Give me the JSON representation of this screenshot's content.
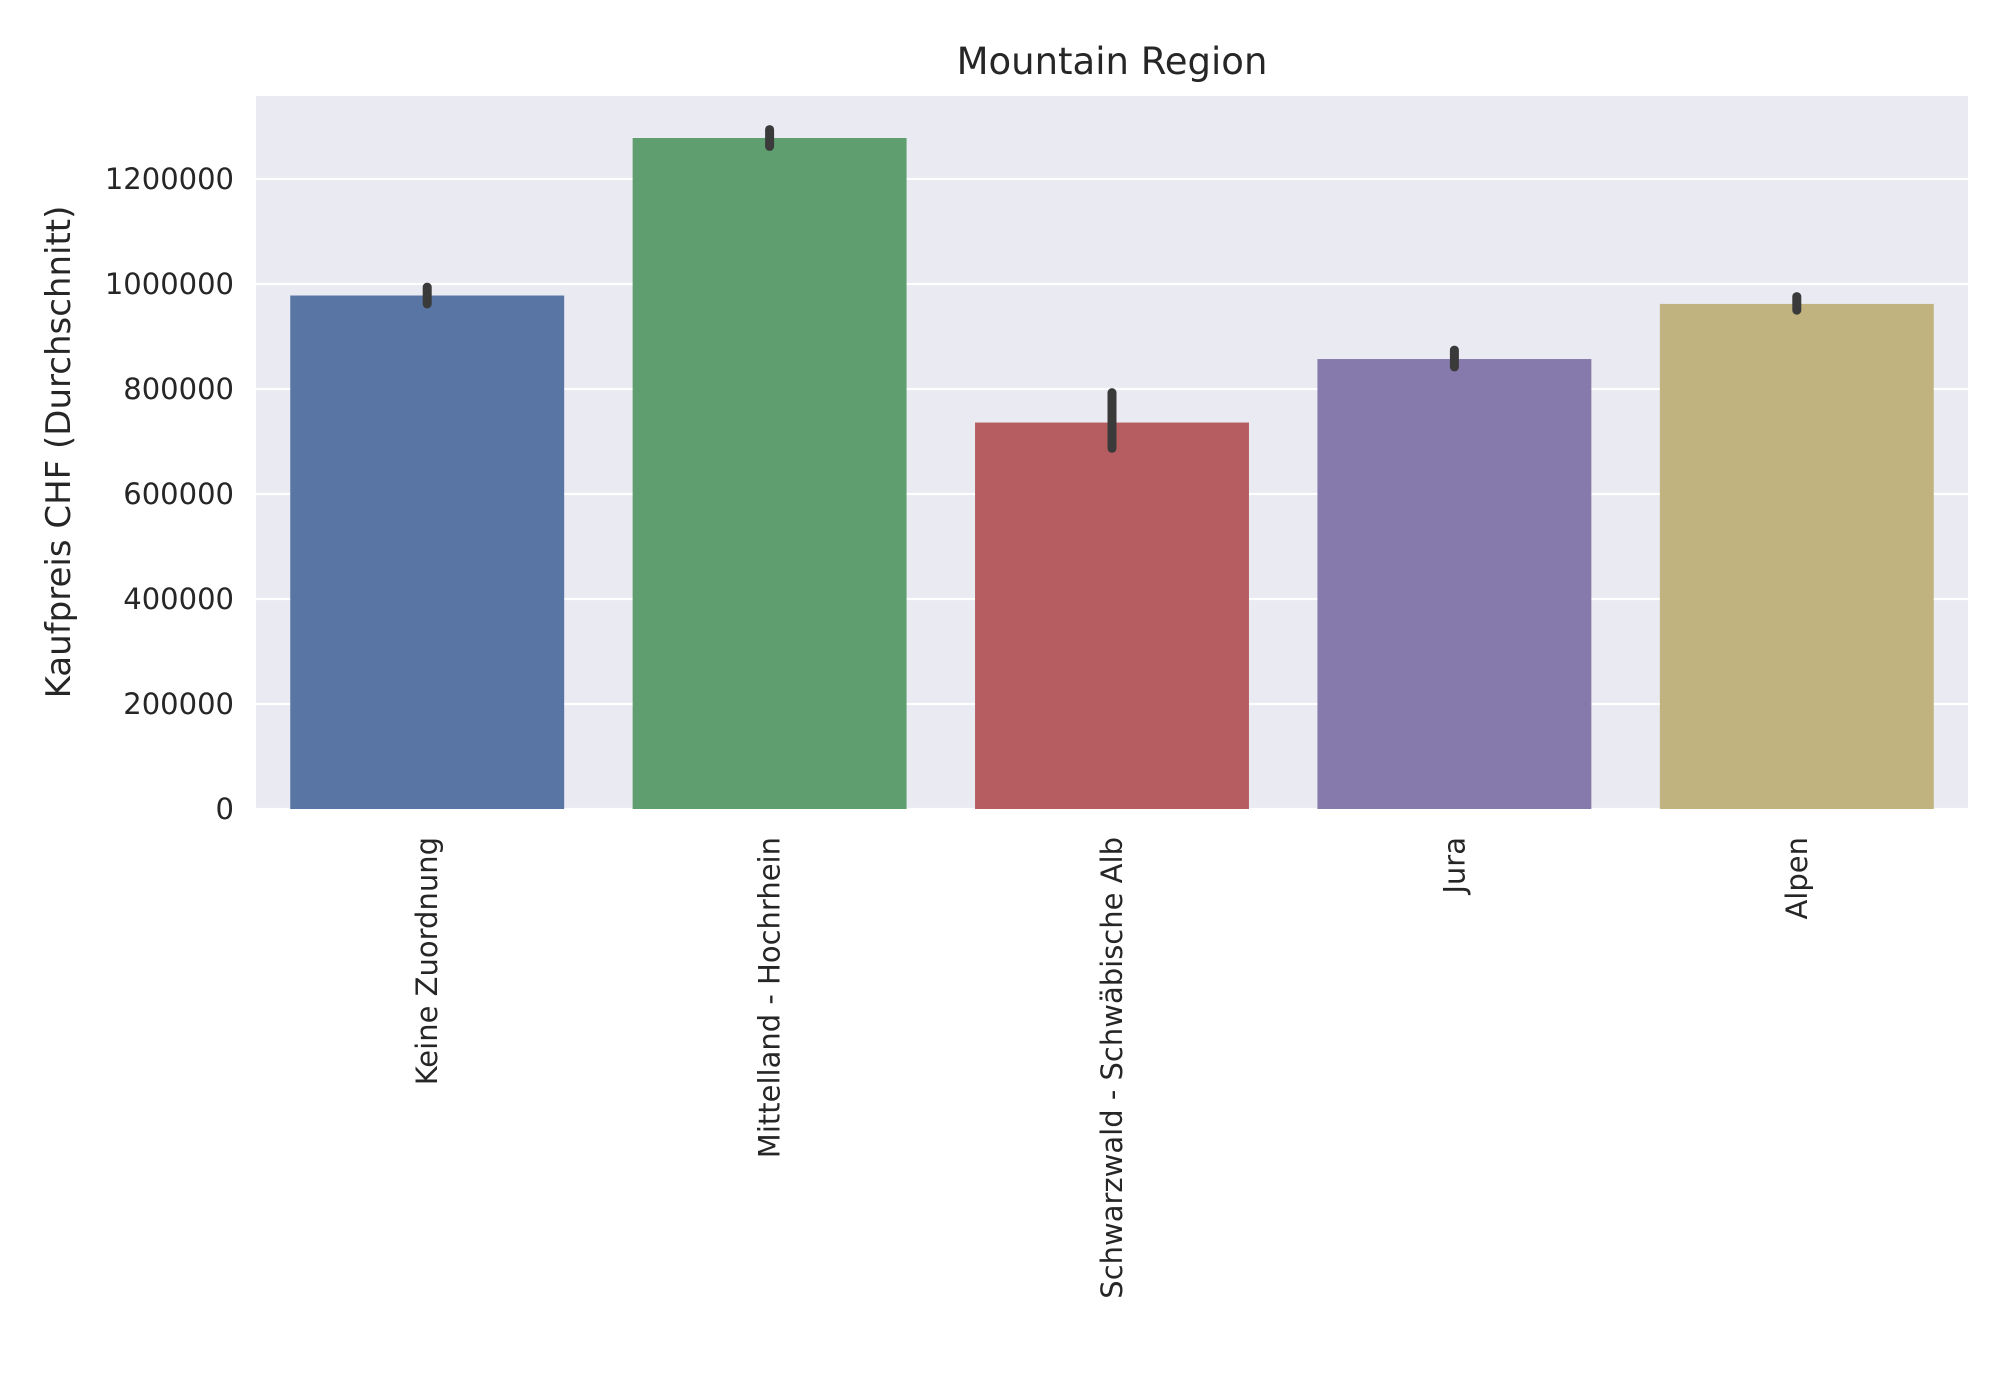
{
  "chart_data": {
    "type": "bar",
    "title": "Mountain Region",
    "xlabel": "",
    "ylabel": "Kaufpreis CHF (Durchschnitt)",
    "categories": [
      "Keine Zuordnung",
      "Mittelland - Hochrhein",
      "Schwarzwald - Schwäbische Alb",
      "Jura",
      "Alpen"
    ],
    "values": [
      978000,
      1278000,
      736000,
      857000,
      962000
    ],
    "error_low": [
      962000,
      1262000,
      687000,
      842000,
      950000
    ],
    "error_high": [
      994000,
      1294000,
      793000,
      874000,
      976000
    ],
    "colors": [
      "#5975a4",
      "#5f9e6e",
      "#b55d60",
      "#857aab",
      "#c1b37f"
    ],
    "error_color": "#3a3a3a",
    "ylim": [
      0,
      1358000
    ],
    "yticks": [
      0,
      200000,
      400000,
      600000,
      800000,
      1000000,
      1200000
    ],
    "ytick_labels": [
      "0",
      "200000",
      "400000",
      "600000",
      "800000",
      "1000000",
      "1200000"
    ],
    "grid": true,
    "background": "#eaeaf2",
    "grid_color": "#ffffff",
    "tick_label_rotation": "vertical"
  }
}
